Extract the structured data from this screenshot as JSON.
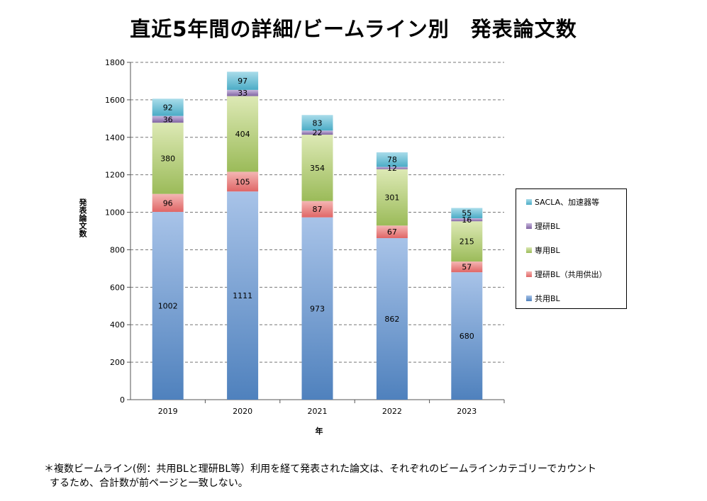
{
  "title": "直近5年間の詳細/ビームライン別　発表論文数",
  "footnote": {
    "line1": "＊複数ビームライン(例：共用BLと理研BL等）利用を経て発表された論文は、それぞれのビームラインカテゴリーでカウント",
    "line2": "するため、合計数が前ページと一致しない。"
  },
  "chart_data": {
    "type": "bar",
    "stacked": true,
    "xlabel": "年",
    "ylabel": "発表論文数",
    "ylim": [
      0,
      1800
    ],
    "yticks": [
      0,
      200,
      400,
      600,
      800,
      1000,
      1200,
      1400,
      1600,
      1800
    ],
    "ytick_labels": [
      "0",
      "200",
      "400",
      "600",
      "800",
      "1000",
      "1200",
      "1400",
      "1600",
      "1800"
    ],
    "grid": true,
    "legend_position": "right",
    "categories": [
      "2019",
      "2020",
      "2021",
      "2022",
      "2023"
    ],
    "series": [
      {
        "name": "共用BL",
        "values": [
          1002,
          1111,
          973,
          862,
          680
        ],
        "color": "#4f81bd",
        "color_light": "#a8c3e8"
      },
      {
        "name": "理研BL（共用供出）",
        "values": [
          96,
          105,
          87,
          67,
          57
        ],
        "color": "#e06666",
        "color_light": "#f4b6b4"
      },
      {
        "name": "専用BL",
        "values": [
          380,
          404,
          354,
          301,
          215
        ],
        "color": "#9bbb59",
        "color_light": "#dde9b5"
      },
      {
        "name": "理研BL",
        "values": [
          36,
          33,
          22,
          12,
          16
        ],
        "color": "#8064a2",
        "color_light": "#c9b8de"
      },
      {
        "name": "SACLA、加速器等",
        "values": [
          92,
          97,
          83,
          78,
          55
        ],
        "color": "#4bacc6",
        "color_light": "#a9dcea"
      }
    ],
    "legend_order": [
      "SACLA、加速器等",
      "理研BL",
      "専用BL",
      "理研BL（共用供出）",
      "共用BL"
    ]
  }
}
